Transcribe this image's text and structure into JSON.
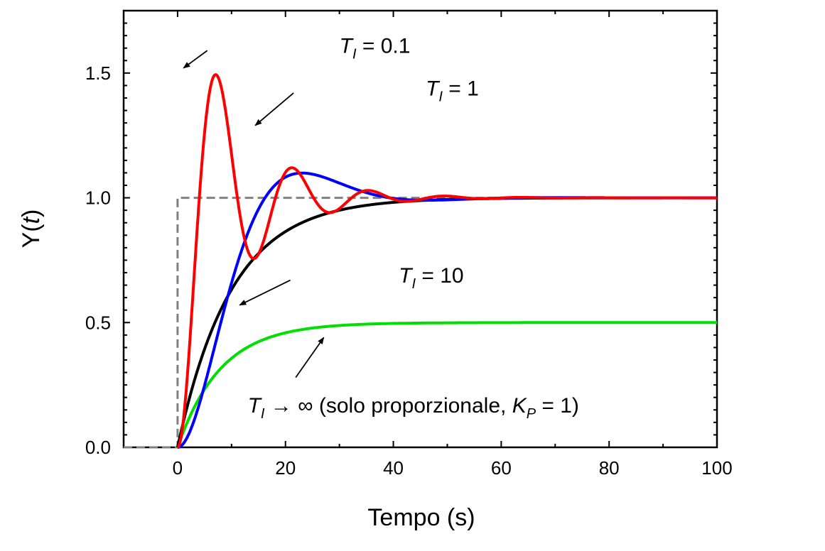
{
  "chart_data": {
    "type": "line",
    "title": "",
    "xlabel": "Tempo (s)",
    "ylabel": {
      "main": "Y(",
      "var": "t",
      "close": ")"
    },
    "xlim": [
      -10,
      100
    ],
    "ylim": [
      0,
      1.75
    ],
    "xticks": [
      0,
      20,
      40,
      60,
      80,
      100
    ],
    "xtick_labels": [
      "0",
      "20",
      "40",
      "60",
      "80",
      "100"
    ],
    "yticks": [
      0.0,
      0.5,
      1.0,
      1.5
    ],
    "ytick_labels": [
      "0.0",
      "0.5",
      "1.0",
      "1.5"
    ],
    "grid": false,
    "legend": "none",
    "reference_step": {
      "style": "dashed",
      "color": "#808080",
      "x": [
        -10,
        0,
        0,
        100
      ],
      "y": [
        0,
        0,
        1,
        1
      ]
    },
    "series": [
      {
        "color": "#00e000",
        "k": 0.5,
        "decay": 0.125,
        "omega": 0,
        "phase": 0
      },
      {
        "color": "#000000",
        "k": 1.0,
        "decay": 0.1,
        "omega": 0,
        "phase": 0
      },
      {
        "color": "#0000ff",
        "k": 1.0,
        "decay": 0.1,
        "omega": 0.136,
        "phase": 0
      },
      {
        "color": "#ff0000",
        "k": 1.0,
        "decay": 0.1,
        "omega": 0.445,
        "phase": 0
      }
    ],
    "annotations": [
      {
        "sym": "T",
        "sub": "I",
        "rest": " = 0.1",
        "tx": 30,
        "ty": 1.58,
        "ax": 5.5,
        "ay": 1.59,
        "bx": 1.1,
        "by": 1.52
      },
      {
        "sym": "T",
        "sub": "I",
        "rest": " = 1",
        "tx": 46,
        "ty": 1.41,
        "ax": 21.5,
        "ay": 1.42,
        "bx": 14.4,
        "by": 1.29
      },
      {
        "sym": "T",
        "sub": "I",
        "rest": " = 10",
        "tx": 41,
        "ty": 0.66,
        "ax": 20.9,
        "ay": 0.67,
        "bx": 11.5,
        "by": 0.57
      },
      {
        "sym": "T",
        "sub": "I",
        "rest": " → ∞  (solo proporzionale, ",
        "sym2": "K",
        "sub2": "P",
        "rest2": " = 1)",
        "tx": 13,
        "ty": 0.14,
        "ax": 21.9,
        "ay": 0.28,
        "bx": 27.1,
        "by": 0.44
      }
    ]
  }
}
